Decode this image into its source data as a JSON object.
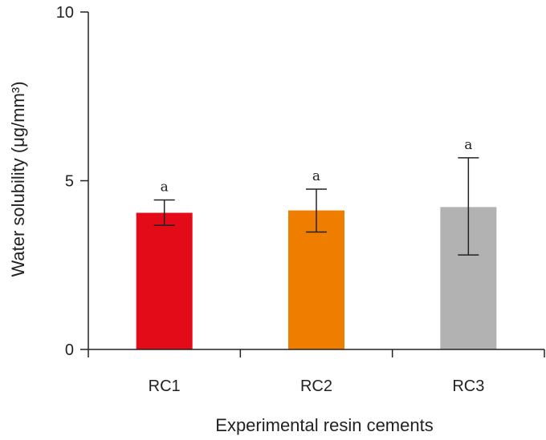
{
  "chart_data": {
    "type": "bar",
    "title": "",
    "xlabel": "Experimental resin cements",
    "ylabel": "Water solubility (μg/mm³)",
    "ylim": [
      0,
      10
    ],
    "yticks": [
      0,
      5,
      10
    ],
    "categories": [
      "RC1",
      "RC2",
      "RC3"
    ],
    "values": [
      4.05,
      4.12,
      4.22
    ],
    "error_low": [
      3.68,
      3.48,
      2.8
    ],
    "error_high": [
      4.43,
      4.75,
      5.68
    ],
    "significance_labels": [
      "a",
      "a",
      "a"
    ],
    "colors": [
      "#e30b17",
      "#ef7d00",
      "#b2b2b2"
    ],
    "grid": false,
    "legend": "none"
  }
}
